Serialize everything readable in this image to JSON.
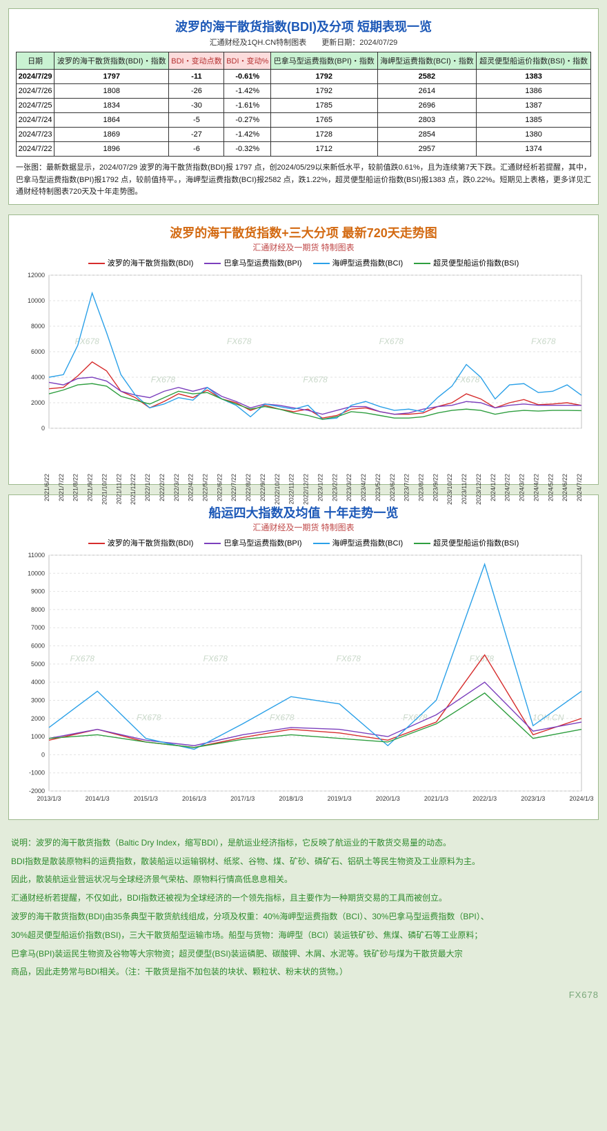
{
  "colors": {
    "page_bg": "#e3ecdb",
    "panel_border": "#9cb88c",
    "title_blue": "#1c58b7",
    "title_orange": "#d36a12",
    "sub_red": "#c04848",
    "footer_green": "#2d8a2d",
    "hdr_green_bg": "#c9f2d2",
    "hdr_red_bg": "#fcdcdc",
    "watermark": "#c9d8c9"
  },
  "table_panel": {
    "title": "波罗的海干散货指数(BDI)及分项 短期表现一览",
    "subtitle": "汇通财经及1QH.CN特制图表　　更新日期：2024/07/29",
    "columns": [
      {
        "label": "日期",
        "cls": "hdr-green"
      },
      {
        "label": "波罗的海干散货指数(BDI)・指数",
        "cls": "hdr-green"
      },
      {
        "label": "BDI・变动点数",
        "cls": "hdr-red"
      },
      {
        "label": "BDI・变动%",
        "cls": "hdr-red"
      },
      {
        "label": "巴拿马型运费指数(BPI)・指数",
        "cls": "hdr-green"
      },
      {
        "label": "海岬型运费指数(BCI)・指数",
        "cls": "hdr-green"
      },
      {
        "label": "超灵便型船运价指数(BSI)・指数",
        "cls": "hdr-green"
      }
    ],
    "rows": [
      [
        "2024/7/29",
        "1797",
        "-11",
        "-0.61%",
        "1792",
        "2582",
        "1383"
      ],
      [
        "2024/7/26",
        "1808",
        "-26",
        "-1.42%",
        "1792",
        "2614",
        "1386"
      ],
      [
        "2024/7/25",
        "1834",
        "-30",
        "-1.61%",
        "1785",
        "2696",
        "1387"
      ],
      [
        "2024/7/24",
        "1864",
        "-5",
        "-0.27%",
        "1765",
        "2803",
        "1385"
      ],
      [
        "2024/7/23",
        "1869",
        "-27",
        "-1.42%",
        "1728",
        "2854",
        "1380"
      ],
      [
        "2024/7/22",
        "1896",
        "-6",
        "-0.32%",
        "1712",
        "2957",
        "1374"
      ]
    ],
    "note": "一张图：最新数据显示，2024/07/29 波罗的海干散货指数(BDI)报 1797 点，创2024/05/29以来新低水平，较前值跌0.61%，且为连续第7天下跌。汇通财经析若提醒，其中，巴拿马型运费指数(BPI)报1792 点，较前值持平。，海岬型运费指数(BCI)报2582 点，跌1.22%，超灵便型船运价指数(BSI)报1383 点，跌0.22%。短期见上表格，更多详见汇通财经特制图表720天及十年走势图。"
  },
  "chart720": {
    "title": "波罗的海干散货指数+三大分项 最新720天走势图",
    "subtitle": "汇通财经及一期货 特制图表",
    "background": "#ffffff",
    "grid_color": "#e2e2e2",
    "ylim": [
      0,
      12000
    ],
    "ystep": 2000,
    "series": [
      {
        "name": "波罗的海干散货指数(BDI)",
        "color": "#d62c2c"
      },
      {
        "name": "巴拿马型运费指数(BPI)",
        "color": "#7b3fbd"
      },
      {
        "name": "海岬型运费指数(BCI)",
        "color": "#2aa0e8"
      },
      {
        "name": "超灵便型船运价指数(BSI)",
        "color": "#2e9e3f"
      }
    ],
    "x_labels": [
      "2021/6/22",
      "2021/7/22",
      "2021/8/22",
      "2021/9/22",
      "2021/10/22",
      "2021/11/22",
      "2021/12/22",
      "2022/1/22",
      "2022/2/22",
      "2022/3/22",
      "2022/4/22",
      "2022/5/22",
      "2022/6/22",
      "2022/7/22",
      "2022/8/22",
      "2022/9/22",
      "2022/10/22",
      "2022/11/22",
      "2022/12/22",
      "2023/1/22",
      "2023/2/22",
      "2023/3/22",
      "2023/4/22",
      "2023/5/22",
      "2023/6/22",
      "2023/7/22",
      "2023/8/22",
      "2023/9/22",
      "2023/10/22",
      "2023/11/22",
      "2023/12/22",
      "2024/1/22",
      "2024/2/22",
      "2024/3/22",
      "2024/4/22",
      "2024/5/22",
      "2024/6/22",
      "2024/7/22"
    ],
    "bdi": [
      3100,
      3200,
      4100,
      5200,
      4500,
      2900,
      2400,
      1600,
      2100,
      2700,
      2400,
      3000,
      2300,
      2000,
      1400,
      1800,
      1500,
      1300,
      1500,
      800,
      1000,
      1500,
      1600,
      1300,
      1100,
      1100,
      1200,
      1700,
      2000,
      2700,
      2300,
      1600,
      2000,
      2250,
      1850,
      1900,
      2000,
      1797
    ],
    "bpi": [
      3600,
      3400,
      3900,
      4000,
      3700,
      2900,
      2600,
      2400,
      2900,
      3200,
      2900,
      3200,
      2500,
      2100,
      1600,
      1900,
      1800,
      1600,
      1400,
      1100,
      1400,
      1700,
      1700,
      1300,
      1100,
      1200,
      1500,
      1700,
      1800,
      2100,
      2000,
      1600,
      1800,
      1900,
      1800,
      1800,
      1800,
      1792
    ],
    "bci": [
      4000,
      4200,
      6500,
      10600,
      7500,
      4200,
      2600,
      1600,
      1900,
      2400,
      2200,
      3200,
      2300,
      1800,
      900,
      1900,
      1700,
      1500,
      1800,
      700,
      800,
      1800,
      2100,
      1700,
      1400,
      1500,
      1300,
      2400,
      3300,
      5000,
      4000,
      2300,
      3400,
      3500,
      2800,
      2900,
      3400,
      2582
    ],
    "bsi": [
      2700,
      3000,
      3400,
      3500,
      3300,
      2500,
      2200,
      1900,
      2400,
      2900,
      2700,
      2800,
      2300,
      1900,
      1500,
      1700,
      1500,
      1200,
      1000,
      700,
      900,
      1300,
      1200,
      1000,
      800,
      800,
      900,
      1200,
      1400,
      1500,
      1400,
      1100,
      1300,
      1400,
      1350,
      1400,
      1400,
      1383
    ],
    "watermarks": [
      "FX678",
      "FX678",
      "FX678",
      "FX678",
      "FX678",
      "FX678",
      "FX678"
    ]
  },
  "chart10y": {
    "title": "船运四大指数及均值 十年走势一览",
    "subtitle": "汇通财经及一期货 特制图表",
    "background": "#ffffff",
    "grid_color": "#e2e2e2",
    "ylim": [
      -2000,
      11000
    ],
    "ystep": 1000,
    "series": [
      {
        "name": "波罗的海干散货指数(BDI)",
        "color": "#d62c2c"
      },
      {
        "name": "巴拿马型运费指数(BPI)",
        "color": "#7b3fbd"
      },
      {
        "name": "海岬型运费指数(BCI)",
        "color": "#2aa0e8"
      },
      {
        "name": "超灵便型船运价指数(BSI)",
        "color": "#2e9e3f"
      }
    ],
    "x_labels": [
      "2013/1/3",
      "2014/1/3",
      "2015/1/3",
      "2016/1/3",
      "2017/1/3",
      "2018/1/3",
      "2019/1/3",
      "2020/1/3",
      "2021/1/3",
      "2022/1/3",
      "2023/1/3",
      "2024/1/3"
    ],
    "bdi": [
      800,
      1400,
      700,
      400,
      950,
      1400,
      1200,
      800,
      1800,
      5500,
      1100,
      2000
    ],
    "bpi": [
      900,
      1400,
      800,
      500,
      1100,
      1500,
      1400,
      1000,
      2200,
      4000,
      1300,
      1800
    ],
    "bci": [
      1500,
      3500,
      900,
      300,
      1700,
      3200,
      2800,
      500,
      3000,
      10500,
      1600,
      3500
    ],
    "bsi": [
      900,
      1100,
      700,
      400,
      850,
      1100,
      900,
      700,
      1700,
      3400,
      900,
      1400
    ],
    "watermarks": [
      "FX678",
      "FX678",
      "FX678",
      "FX678",
      "FX678",
      "FX678",
      "FX678",
      "1QH.CN"
    ]
  },
  "footer": {
    "lines": [
      "说明：波罗的海干散货指数（Baltic Dry Index，缩写BDI），是航运业经济指标，它反映了航运业的干散货交易量的动态。",
      "BDI指数是散装原物料的运费指数，散装船运以运输钢材、纸浆、谷物、煤、矿砂、磷矿石、铝矾土等民生物资及工业原料为主。",
      "因此，散装航运业营运状况与全球经济景气荣枯、原物料行情高低息息相关。",
      "汇通财经析若提醒，不仅如此，BDI指数还被视为全球经济的一个领先指标，且主要作为一种期货交易的工具而被创立。",
      "波罗的海干散货指数(BDI)由35条典型干散货航线组成，分项及权重：40%海岬型运费指数（BCI）、30%巴拿马型运费指数（BPI）、",
      "30%超灵便型船运价指数(BSI)，三大干散货船型运输市场。船型与货物：海岬型（BCI）装运铁矿砂、焦煤、磷矿石等工业原料；",
      "巴拿马(BPI)装运民生物资及谷物等大宗物资；超灵便型(BSI)装运磷肥、碳酸钾、木屑、水泥等。铁矿砂与煤为干散货最大宗",
      "商品，因此走势常与BDI相关。（注：干散货是指不加包装的块状、颗粒状、粉末状的货物。）"
    ]
  },
  "watermark_corner": "FX678"
}
